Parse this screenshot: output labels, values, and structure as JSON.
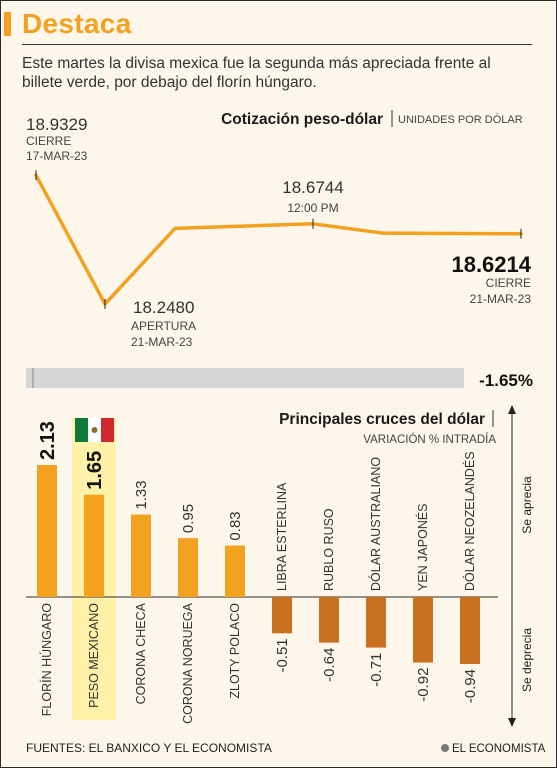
{
  "header": {
    "title": "Destaca"
  },
  "subtitle": "Este martes la divisa mexica fue la segunda más apreciada frente al billete verde, por debajo del florín húngaro.",
  "line_chart": {
    "title": "Cotización peso-dólar",
    "unit": "UNIDADES POR DÓLAR",
    "annotations": [
      {
        "value": "18.9329",
        "label": "CIERRE",
        "date": "17-MAR-23"
      },
      {
        "value": "18.2480",
        "label": "APERTURA",
        "date": "21-MAR-23"
      },
      {
        "value": "18.6744",
        "label": "12:00 PM"
      },
      {
        "value": "18.6214",
        "label": "CIERRE",
        "date": "21-MAR-23"
      }
    ],
    "change": "-1.65%"
  },
  "bar_chart": {
    "title": "Principales cruces del dólar",
    "subtitle": "VARIACIÓN % INTRADÍA",
    "up_label": "Se aprecia",
    "down_label": "Se deprecia"
  },
  "colors": {
    "accent": "#f2a21f",
    "negative": "#c9711f",
    "highlight": "#fff1a8",
    "background": "#fdf6ea"
  },
  "chart_data": [
    {
      "type": "line",
      "series": [
        {
          "values": [
            18.9329,
            18.248,
            18.65,
            18.6744,
            18.625,
            18.6214
          ]
        }
      ],
      "ylim": [
        18.2,
        18.95
      ]
    },
    {
      "type": "bar",
      "categories": [
        "FLORÍN HÚNGARO",
        "PESO MEXICANO",
        "CORONA CHECA",
        "CORONA NORUEGA",
        "ZLOTY POLACO",
        "LIBRA ESTERLINA",
        "RUBLO RUSO",
        "DÓLAR AUSTRALIANO",
        "YEN JAPONÉS",
        "DÓLAR NEOZELANDÉS"
      ],
      "values": [
        2.13,
        1.65,
        1.33,
        0.95,
        0.83,
        -0.51,
        -0.64,
        -0.71,
        -0.92,
        -0.94
      ],
      "labels": [
        "2.13",
        "1.65",
        "1.33",
        "0.95",
        "0.83",
        "-0.51",
        "-0.64",
        "-0.71",
        "-0.92",
        "-0.94"
      ],
      "highlight": "PESO MEXICANO"
    }
  ],
  "footer": {
    "sources": "FUENTES: EL BANXICO Y EL ECONOMISTA",
    "logo": "EL ECONOMISTA"
  }
}
